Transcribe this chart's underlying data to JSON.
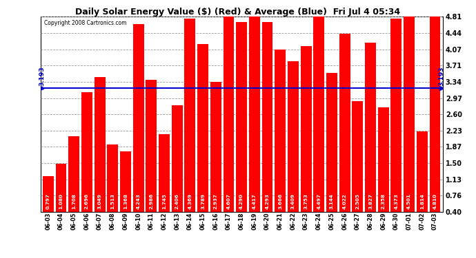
{
  "title": "Daily Solar Energy Value ($) (Red) & Average (Blue)  Fri Jul 4 05:34",
  "copyright": "Copyright 2008 Cartronics.com",
  "average": 3.193,
  "average_label": "3.193",
  "ylim": [
    0.4,
    4.81
  ],
  "yticks": [
    0.4,
    0.76,
    1.13,
    1.5,
    1.87,
    2.23,
    2.6,
    2.97,
    3.34,
    3.71,
    4.07,
    4.44,
    4.81
  ],
  "bar_color": "#FF0000",
  "avg_color": "#0000CC",
  "bg_color": "#FFFFFF",
  "plot_bg_color": "#FFFFFF",
  "grid_color": "#999999",
  "categories": [
    "06-03",
    "06-04",
    "06-05",
    "06-06",
    "06-07",
    "06-08",
    "06-09",
    "06-10",
    "06-11",
    "06-12",
    "06-13",
    "06-14",
    "06-15",
    "06-16",
    "06-17",
    "06-18",
    "06-19",
    "06-20",
    "06-21",
    "06-22",
    "06-23",
    "06-24",
    "06-25",
    "06-26",
    "06-27",
    "06-28",
    "06-29",
    "06-30",
    "07-01",
    "07-02",
    "07-03"
  ],
  "values": [
    0.797,
    1.08,
    1.708,
    2.696,
    3.049,
    1.513,
    1.368,
    4.243,
    2.986,
    1.745,
    2.406,
    4.369,
    3.789,
    2.937,
    4.607,
    4.29,
    4.417,
    4.293,
    3.666,
    3.409,
    3.753,
    4.497,
    3.144,
    4.022,
    2.505,
    3.827,
    2.358,
    4.373,
    4.501,
    1.814,
    4.81
  ]
}
